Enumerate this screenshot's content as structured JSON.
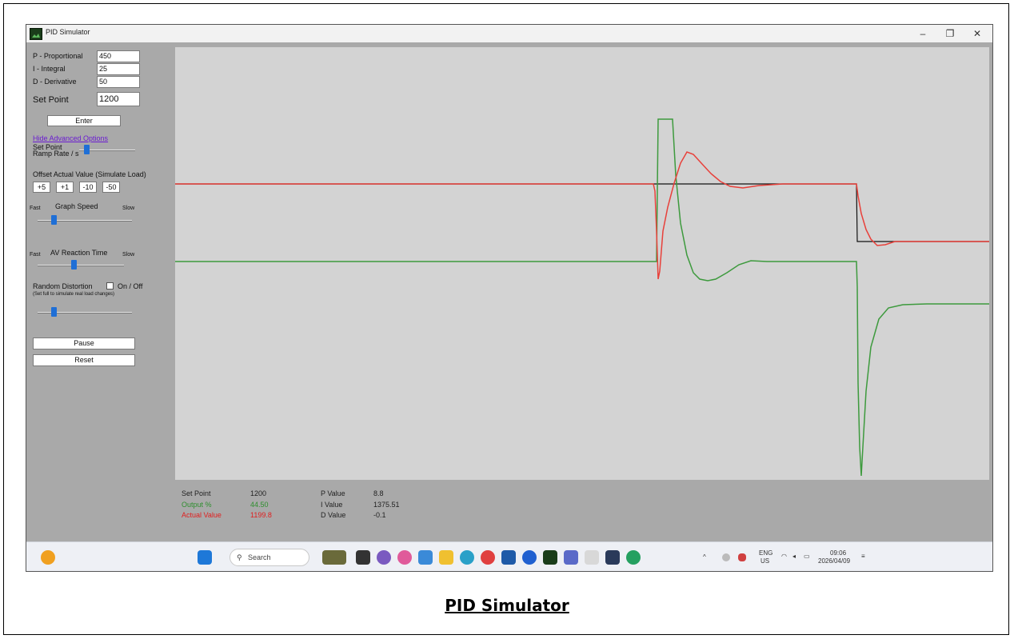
{
  "window": {
    "title": "PID Simulator",
    "minimize": "–",
    "restore": "❐",
    "close": "✕"
  },
  "controls": {
    "p_label": "P - Proportional",
    "p_value": "450",
    "i_label": "I - Integral",
    "i_value": "25",
    "d_label": "D - Derivative",
    "d_value": "50",
    "setpoint_label": "Set Point",
    "setpoint_value": "1200",
    "enter_button": "Enter",
    "advanced_link": "Hide Advanced Options",
    "ramp_label_1": "Set Point",
    "ramp_label_2": "Ramp Rate / s",
    "offset_label": "Offset Actual Value (Simulate Load)",
    "offset_buttons": [
      "+5",
      "+1",
      "-10",
      "-50"
    ],
    "graph_speed_label": "Graph Speed",
    "fast": "Fast",
    "slow": "Slow",
    "av_reaction_label": "AV Reaction Time",
    "random_label": "Random Distortion",
    "onoff_label": "On / Off",
    "random_hint": "(Set full to simulate real load changes)",
    "pause_button": "Pause",
    "reset_button": "Reset"
  },
  "slider_levels": {
    "ramp": 0.1,
    "graph_speed": 0.15,
    "av_reaction": 0.42,
    "random": 0.15
  },
  "status": {
    "sp_label": "Set Point",
    "sp_value": "1200",
    "out_label": "Output %",
    "out_value": "44.50",
    "av_label": "Actual Value",
    "av_value": "1199.8",
    "p_label": "P Value",
    "p_value": "8.8",
    "i_label": "I Value",
    "i_value": "1375.51",
    "d_label": "D Value",
    "d_value": "-0.1"
  },
  "colors": {
    "setpoint": "#111111",
    "actual": "#e8403a",
    "output": "#3d9a3d",
    "output_text": "#2f8f2f",
    "actual_text": "#e02020"
  },
  "taskbar": {
    "search_placeholder": "Search",
    "lang_1": "ENG",
    "lang_2": "US",
    "time": "09:06",
    "date": "2026/04/09"
  },
  "caption": "PID Simulator"
}
